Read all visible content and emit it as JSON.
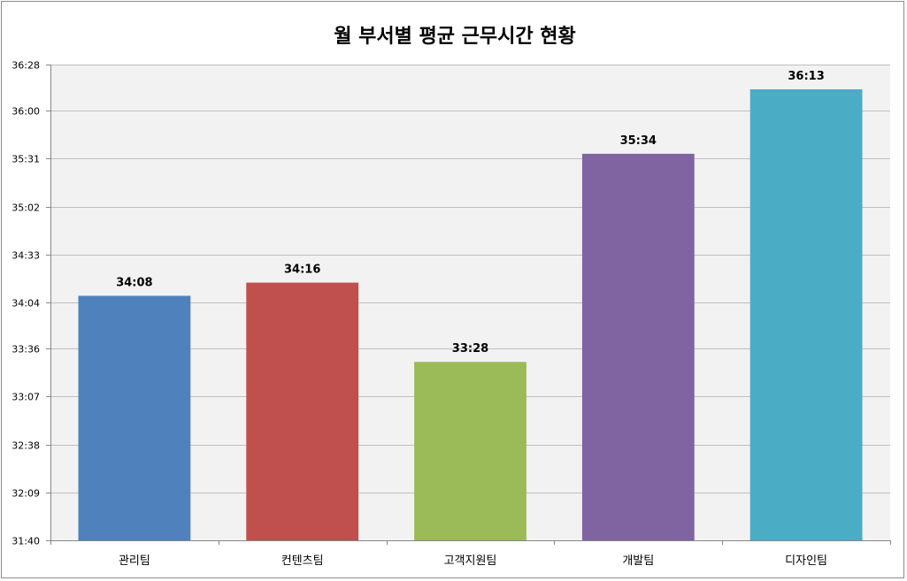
{
  "chart_data": {
    "type": "bar",
    "title": "월 부서별 평균 근무시간 현황",
    "xlabel": "",
    "ylabel": "",
    "categories": [
      "관리팀",
      "컨텐츠팀",
      "고객지원팀",
      "개발팀",
      "디자인팀"
    ],
    "values": [
      34.1333,
      34.2667,
      33.4667,
      35.5667,
      36.2167
    ],
    "data_labels": [
      "34:08",
      "34:16",
      "33:28",
      "35:34",
      "36:13"
    ],
    "colors": [
      "#4f81bd",
      "#c0504d",
      "#9bbb59",
      "#8064a2",
      "#4bacc6"
    ],
    "ylim": [
      31.6667,
      36.4667
    ],
    "yticks": [
      31.6667,
      32.15,
      32.6333,
      33.1167,
      33.6,
      34.0667,
      34.55,
      35.0333,
      35.5167,
      36.0,
      36.4667
    ],
    "ytick_labels": [
      "31:40",
      "32:09",
      "32:38",
      "33:07",
      "33:36",
      "34:04",
      "34:33",
      "35:02",
      "35:31",
      "36:00",
      "36:28"
    ],
    "grid": true,
    "plot_background": "#f2f2f2",
    "gridline_color": "#bfbfbf"
  }
}
